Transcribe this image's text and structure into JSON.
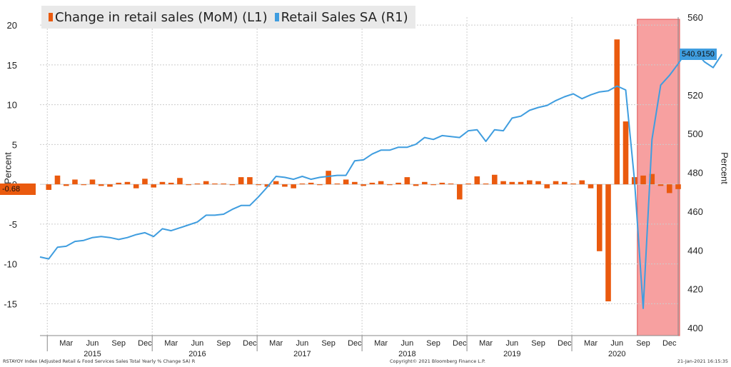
{
  "colors": {
    "bars": "#ea5a0e",
    "line": "#3f9ddf",
    "shade": "#f7a0a0",
    "shade_border": "#e05050",
    "grid": "#cccccc"
  },
  "chart_data": {
    "type": "bar+line",
    "legend_placement": "top-left",
    "grid": true,
    "left_axis": {
      "label": "Percent",
      "ticks": [
        20,
        15,
        10,
        5,
        0,
        -5,
        -10,
        -15
      ],
      "range": [
        -19,
        21
      ]
    },
    "right_axis": {
      "label": "Percent",
      "ticks": [
        560,
        540,
        520,
        500,
        480,
        460,
        440,
        420,
        400
      ],
      "range": [
        396,
        560
      ]
    },
    "x_axis": {
      "start": "2014-12",
      "end": "2021-01",
      "month_labels": [
        {
          "date": "2015-03",
          "label": "Mar"
        },
        {
          "date": "2015-06",
          "label": "Jun"
        },
        {
          "date": "2015-09",
          "label": "Sep"
        },
        {
          "date": "2015-12",
          "label": "Dec"
        },
        {
          "date": "2016-03",
          "label": "Mar"
        },
        {
          "date": "2016-06",
          "label": "Jun"
        },
        {
          "date": "2016-09",
          "label": "Sep"
        },
        {
          "date": "2016-12",
          "label": "Dec"
        },
        {
          "date": "2017-03",
          "label": "Mar"
        },
        {
          "date": "2017-06",
          "label": "Jun"
        },
        {
          "date": "2017-09",
          "label": "Sep"
        },
        {
          "date": "2017-12",
          "label": "Dec"
        },
        {
          "date": "2018-03",
          "label": "Mar"
        },
        {
          "date": "2018-06",
          "label": "Jun"
        },
        {
          "date": "2018-09",
          "label": "Sep"
        },
        {
          "date": "2018-12",
          "label": "Dec"
        },
        {
          "date": "2019-03",
          "label": "Mar"
        },
        {
          "date": "2019-06",
          "label": "Jun"
        },
        {
          "date": "2019-09",
          "label": "Sep"
        },
        {
          "date": "2019-12",
          "label": "Dec"
        },
        {
          "date": "2020-03",
          "label": "Mar"
        },
        {
          "date": "2020-06",
          "label": "Jun"
        },
        {
          "date": "2020-09",
          "label": "Sep"
        },
        {
          "date": "2020-12",
          "label": "Dec"
        }
      ],
      "year_labels": [
        {
          "date": "2015-06",
          "label": "2015"
        },
        {
          "date": "2016-06",
          "label": "2016"
        },
        {
          "date": "2017-06",
          "label": "2017"
        },
        {
          "date": "2018-06",
          "label": "2018"
        },
        {
          "date": "2019-06",
          "label": "2019"
        },
        {
          "date": "2020-06",
          "label": "2020"
        }
      ]
    },
    "highlight": {
      "start": "2020-08",
      "end": "2021-01"
    },
    "series": [
      {
        "name": "Change in retail sales (MoM) (L1)",
        "type": "bar",
        "axis": "left",
        "start": "2015-01",
        "values": [
          -0.7,
          1.1,
          -0.2,
          0.6,
          -0.1,
          0.6,
          -0.2,
          -0.3,
          0.2,
          0.3,
          -0.5,
          0.7,
          -0.4,
          0.3,
          0.2,
          0.8,
          -0.1,
          0.1,
          0.4,
          0.1,
          0.1,
          -0.1,
          0.9,
          0.9,
          -0.1,
          -0.3,
          0.4,
          -0.3,
          -0.5,
          0.1,
          0.2,
          -0.1,
          1.7,
          0.1,
          0.6,
          0.3,
          -0.2,
          0.2,
          0.4,
          -0.1,
          0.2,
          0.9,
          -0.2,
          0.3,
          -0.1,
          0.2,
          0.1,
          -1.9,
          0.1,
          1.0,
          0.1,
          1.2,
          0.4,
          0.3,
          0.3,
          0.5,
          0.4,
          -0.5,
          0.4,
          0.3,
          0.1,
          0.5,
          -0.5,
          -8.4,
          -14.7,
          18.2,
          7.9,
          0.9,
          1.1,
          1.3,
          -0.2,
          -1.1,
          -0.6
        ]
      },
      {
        "name": "Retail Sales SA (R1)",
        "type": "line",
        "axis": "right",
        "start": "2014-12",
        "values": [
          436.5,
          435.5,
          441.5,
          442,
          444.5,
          445,
          446.5,
          447,
          446.5,
          445.5,
          446.5,
          448,
          449,
          447,
          451,
          450,
          451.5,
          453,
          454.5,
          458,
          458,
          458.5,
          461,
          463,
          463,
          467.5,
          472.5,
          478,
          477.5,
          476.5,
          478,
          476.5,
          477.5,
          478,
          478.5,
          478.5,
          486,
          486.5,
          489.5,
          491.5,
          491.5,
          493,
          493,
          494.5,
          498,
          497,
          499,
          498.5,
          498,
          501.5,
          502,
          496,
          502,
          501.5,
          508,
          509,
          512,
          513.5,
          514.5,
          517,
          519,
          520.5,
          518,
          520,
          521.5,
          522,
          524.5,
          522.5,
          476,
          410,
          497,
          525,
          530,
          536,
          542.5,
          542,
          537,
          534,
          540.915
        ]
      }
    ],
    "last_value_badges": {
      "left": "-0.68",
      "right": "540.9150"
    }
  },
  "footer": {
    "source": "RSTAYOY Index (Adjusted Retail & Food Services Sales Total Yearly % Change SA) R",
    "copyright": "Copyright© 2021 Bloomberg Finance L.P.",
    "timestamp": "21-Jan-2021 16:15:35"
  }
}
